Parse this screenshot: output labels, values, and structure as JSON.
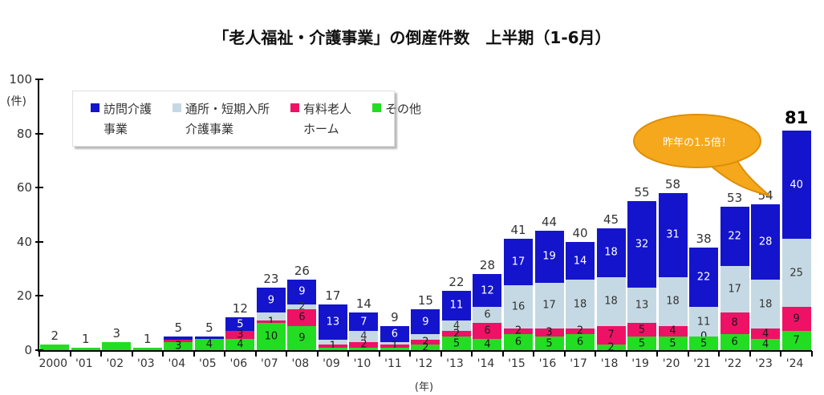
{
  "title": "「老人福祉・介護事業」の倒産件数　上半期（1-6月）",
  "y_axis": {
    "unit_label": "(件)",
    "ticks": [
      0,
      20,
      40,
      60,
      80,
      100
    ],
    "max": 100
  },
  "x_axis": {
    "unit_label": "(年)"
  },
  "legend": {
    "items": [
      {
        "name": "visit",
        "label_line1": "訪問介護",
        "label_line2": "事業",
        "color": "#1414cc",
        "label_color": "#ffffff"
      },
      {
        "name": "day_short",
        "label_line1": "通所・短期入所",
        "label_line2": "介護事業",
        "color": "#c5d9e4",
        "label_color": "#333333"
      },
      {
        "name": "paid_home",
        "label_line1": "有料老人",
        "label_line2": "ホーム",
        "color": "#ee1166",
        "label_color": "#1a1a1a"
      },
      {
        "name": "other",
        "label_line1": "その他",
        "label_line2": "",
        "color": "#22dd22",
        "label_color": "#1a1a1a"
      }
    ]
  },
  "annotation": {
    "text": "昨年の1.5倍！",
    "fill": "#f6a81c",
    "border": "#dd8f07",
    "text_color": "#ffffff"
  },
  "chart_data": {
    "type": "bar",
    "stacked": true,
    "title": "「老人福祉・介護事業」の倒産件数　上半期（1-6月）",
    "xlabel": "(年)",
    "ylabel": "(件)",
    "ylim": [
      0,
      100
    ],
    "grid": false,
    "legend_position": "top-left",
    "series_order_bottom_to_top": [
      "other",
      "paid_home",
      "day_short",
      "visit"
    ],
    "series_names": {
      "visit": "訪問介護事業",
      "day_short": "通所・短期入所介護事業",
      "paid_home": "有料老人ホーム",
      "other": "その他"
    },
    "years": [
      {
        "year": "2000",
        "total": 2,
        "bold": false,
        "values": [
          2,
          0,
          0,
          0
        ],
        "shown": [
          0,
          0,
          0,
          0
        ]
      },
      {
        "year": "'01",
        "total": 1,
        "bold": false,
        "values": [
          1,
          0,
          0,
          0
        ],
        "shown": [
          0,
          0,
          0,
          0
        ]
      },
      {
        "year": "'02",
        "total": 3,
        "bold": false,
        "values": [
          3,
          0,
          0,
          0
        ],
        "shown": [
          0,
          0,
          0,
          0
        ]
      },
      {
        "year": "'03",
        "total": 1,
        "bold": false,
        "values": [
          1,
          0,
          0,
          0
        ],
        "shown": [
          0,
          0,
          0,
          0
        ]
      },
      {
        "year": "'04",
        "total": 5,
        "bold": false,
        "values": [
          3,
          1,
          0,
          1
        ],
        "shown": [
          1,
          0,
          0,
          0
        ]
      },
      {
        "year": "'05",
        "total": 5,
        "bold": false,
        "values": [
          4,
          0,
          0,
          1
        ],
        "shown": [
          1,
          0,
          0,
          0
        ]
      },
      {
        "year": "'06",
        "total": 12,
        "bold": false,
        "values": [
          4,
          3,
          0,
          5
        ],
        "shown": [
          1,
          1,
          0,
          1
        ]
      },
      {
        "year": "'07",
        "total": 23,
        "bold": false,
        "values": [
          10,
          1,
          3,
          9
        ],
        "shown": [
          1,
          1,
          0,
          1
        ]
      },
      {
        "year": "'08",
        "total": 26,
        "bold": false,
        "values": [
          9,
          6,
          2,
          9
        ],
        "shown": [
          1,
          1,
          1,
          1
        ]
      },
      {
        "year": "'09",
        "total": 17,
        "bold": false,
        "values": [
          1,
          1,
          2,
          13
        ],
        "shown": [
          0,
          1,
          0,
          1
        ]
      },
      {
        "year": "'10",
        "total": 14,
        "bold": false,
        "values": [
          1,
          2,
          4,
          7
        ],
        "shown": [
          0,
          1,
          1,
          1
        ]
      },
      {
        "year": "'11",
        "total": 9,
        "bold": false,
        "values": [
          1,
          1,
          1,
          6
        ],
        "shown": [
          0,
          1,
          0,
          1
        ]
      },
      {
        "year": "'12",
        "total": 15,
        "bold": false,
        "values": [
          2,
          2,
          2,
          9
        ],
        "shown": [
          1,
          1,
          0,
          1
        ]
      },
      {
        "year": "'13",
        "total": 22,
        "bold": false,
        "values": [
          5,
          2,
          4,
          11
        ],
        "shown": [
          1,
          1,
          1,
          1
        ]
      },
      {
        "year": "'14",
        "total": 28,
        "bold": false,
        "values": [
          4,
          6,
          6,
          12
        ],
        "shown": [
          1,
          1,
          1,
          1
        ]
      },
      {
        "year": "'15",
        "total": 41,
        "bold": false,
        "values": [
          6,
          2,
          16,
          17
        ],
        "shown": [
          1,
          1,
          1,
          1
        ]
      },
      {
        "year": "'16",
        "total": 44,
        "bold": false,
        "values": [
          5,
          3,
          17,
          19
        ],
        "shown": [
          1,
          1,
          1,
          1
        ]
      },
      {
        "year": "'17",
        "total": 40,
        "bold": false,
        "values": [
          6,
          2,
          18,
          14
        ],
        "shown": [
          1,
          1,
          1,
          1
        ]
      },
      {
        "year": "'18",
        "total": 45,
        "bold": false,
        "values": [
          2,
          7,
          18,
          18
        ],
        "shown": [
          1,
          1,
          1,
          1
        ]
      },
      {
        "year": "'19",
        "total": 55,
        "bold": false,
        "values": [
          5,
          5,
          13,
          32
        ],
        "shown": [
          1,
          1,
          1,
          1
        ]
      },
      {
        "year": "'20",
        "total": 58,
        "bold": false,
        "values": [
          5,
          4,
          18,
          31
        ],
        "shown": [
          1,
          1,
          1,
          1
        ]
      },
      {
        "year": "'21",
        "total": 38,
        "bold": false,
        "values": [
          5,
          0,
          11,
          22
        ],
        "shown": [
          1,
          1,
          1,
          1
        ]
      },
      {
        "year": "'22",
        "total": 53,
        "bold": false,
        "values": [
          6,
          8,
          17,
          22
        ],
        "shown": [
          1,
          1,
          1,
          1
        ]
      },
      {
        "year": "'23",
        "total": 54,
        "bold": false,
        "values": [
          4,
          4,
          18,
          28
        ],
        "shown": [
          1,
          1,
          1,
          1
        ]
      },
      {
        "year": "'24",
        "total": 81,
        "bold": true,
        "values": [
          7,
          9,
          25,
          40
        ],
        "shown": [
          1,
          1,
          1,
          1
        ]
      }
    ]
  }
}
